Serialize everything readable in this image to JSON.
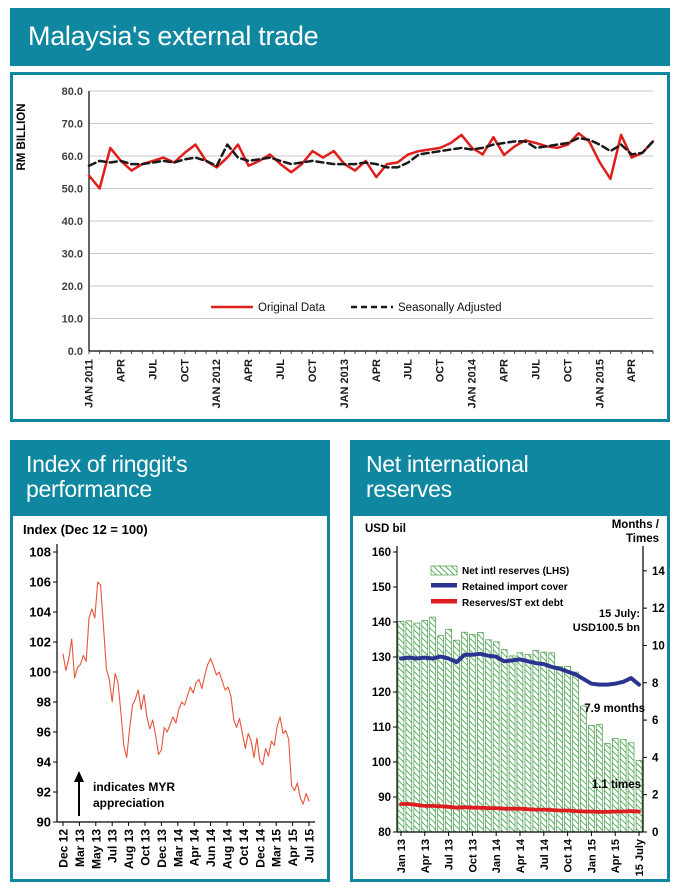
{
  "page": {
    "accent": "#0f87a1",
    "background": "#ffffff"
  },
  "cards": {
    "trade": {
      "title": "Malaysia's external trade"
    },
    "ringgit": {
      "title_line1": "Index of ringgit's",
      "title_line2": "performance"
    },
    "reserves": {
      "title_line1": "Net international",
      "title_line2": "reserves"
    }
  },
  "chart_data": [
    {
      "id": "trade",
      "type": "line",
      "title": "Malaysia's external trade",
      "ylabel": "RM BILLION",
      "ylim": [
        0,
        80
      ],
      "grid": true,
      "y_tick_labels": [
        "80.0",
        "70.0",
        "60.0",
        "50.0",
        "40.0",
        "30.0",
        "20.0",
        "10.0",
        "0.0"
      ],
      "x_tick_labels": [
        "JAN 2011",
        "APR",
        "JUL",
        "OCT",
        "JAN 2012",
        "APR",
        "JUL",
        "OCT",
        "JAN 2013",
        "APR",
        "JUL",
        "OCT",
        "JAN 2014",
        "APR",
        "JUL",
        "OCT",
        "JAN 2015",
        "APR"
      ],
      "x_label_every": 3,
      "legend_position": "bottom-inside",
      "series": [
        {
          "name": "Original Data",
          "color": "#e01e1c",
          "dash": null,
          "values": [
            54,
            50,
            62.5,
            58.5,
            55.5,
            57.5,
            58.5,
            59.5,
            58,
            61,
            63.5,
            58.5,
            56.5,
            59.5,
            63.5,
            57,
            58.5,
            60.5,
            57.5,
            55,
            57.5,
            61.5,
            59.5,
            61.5,
            57.5,
            55.5,
            58.5,
            53.5,
            57.5,
            58,
            60.5,
            61.5,
            62,
            62.5,
            64,
            66.5,
            62.5,
            60.5,
            65.8,
            60.3,
            63,
            64.8,
            64,
            63,
            62.5,
            63.5,
            67,
            64.5,
            58,
            53,
            66.5,
            59.5,
            61,
            64.5
          ]
        },
        {
          "name": "Seasonally Adjusted",
          "color": "#1a1a1a",
          "dash": "7,4",
          "values": [
            57,
            58.5,
            58,
            58.5,
            57.5,
            57.5,
            58,
            58.5,
            58,
            59,
            59.5,
            58.5,
            57,
            63.5,
            59.5,
            58.5,
            59,
            59.5,
            58.5,
            57.5,
            58,
            58.5,
            58,
            57.5,
            57.5,
            57.5,
            58,
            57.5,
            56.5,
            56.5,
            58,
            60.5,
            61,
            61.5,
            62,
            62.5,
            62,
            62.5,
            63.5,
            64,
            64.5,
            64.5,
            62.5,
            63,
            63.5,
            64,
            65.5,
            65,
            63.5,
            61.5,
            63.5,
            60.5,
            61,
            64.5
          ]
        }
      ]
    },
    {
      "id": "ringgit",
      "type": "line",
      "subtitle": "Index (Dec 12 = 100)",
      "ylim": [
        90,
        108
      ],
      "grid": false,
      "y_ticks": [
        108,
        106,
        104,
        102,
        100,
        98,
        96,
        94,
        92,
        90
      ],
      "x_tick_labels": [
        "Dec 12",
        "Mar 13",
        "May 13",
        "Jul 13",
        "Aug 13",
        "Oct 13",
        "Dec 13",
        "Mar 14",
        "Apr 14",
        "Jun 14",
        "Aug 14",
        "Oct 14",
        "Dec 14",
        "Mar 15",
        "Apr 15",
        "Jul 15"
      ],
      "annotation": {
        "symbol": "up-arrow",
        "line1": "indicates MYR",
        "line2": "appreciation"
      },
      "series": [
        {
          "name": "Ringgit performance index",
          "color": "#e8543b",
          "values": [
            101.2,
            100.1,
            100.9,
            102.2,
            99.6,
            100.3,
            100.5,
            101.1,
            100.7,
            103.6,
            104.2,
            103.6,
            106,
            105.8,
            103,
            100.2,
            99.5,
            98,
            99.9,
            99.3,
            97.3,
            95.1,
            94.3,
            96.2,
            97.8,
            98.2,
            98.8,
            97.5,
            98.5,
            97,
            96.2,
            96.8,
            95.8,
            94.5,
            94.8,
            96.3,
            96,
            96.5,
            97,
            96.6,
            97.5,
            98,
            97.8,
            98.4,
            99,
            98.6,
            99.3,
            99.5,
            98.9,
            99.8,
            100.5,
            100.9,
            100.4,
            99.8,
            100,
            99.4,
            98.8,
            99,
            98.4,
            96.8,
            96.3,
            96.9,
            95.9,
            94.9,
            95.9,
            95.4,
            94.3,
            95.6,
            94.1,
            93.8,
            94.9,
            94.4,
            95.4,
            95.1,
            96.4,
            97,
            95.9,
            96.1,
            95.5,
            92.4,
            92.1,
            92.6,
            91.6,
            91.2,
            91.9,
            91.4
          ]
        }
      ]
    },
    {
      "id": "reserves",
      "type": "combo",
      "axis_left_label": "USD bil",
      "axis_right_label_line1": "Months /",
      "axis_right_label_line2": "Times",
      "ylim_left": [
        80,
        160
      ],
      "ylim_right": [
        0,
        14
      ],
      "left_ticks": [
        160,
        150,
        140,
        130,
        120,
        110,
        100,
        90,
        80
      ],
      "right_ticks": [
        14,
        12,
        10,
        8,
        6,
        4,
        2,
        0
      ],
      "x_tick_labels": [
        "Jan 13",
        "Apr 13",
        "Jul 13",
        "Oct 13",
        "Jan 14",
        "Apr 14",
        "Jul 14",
        "Oct 14",
        "Jan 15",
        "Apr 15",
        "15 July"
      ],
      "x_label_every": 3,
      "bars": {
        "name": "Net intl reserves (LHS)",
        "color": "#3f9a43",
        "values": [
          140.2,
          140.3,
          139.7,
          140.4,
          141.4,
          136.1,
          137.9,
          134.8,
          137.1,
          136.4,
          137,
          134.9,
          134.3,
          132.1,
          130.3,
          131.2,
          130.7,
          131.9,
          131.4,
          131.2,
          127.3,
          127.3,
          125.7,
          116,
          110.5,
          110.7,
          105.3,
          106.7,
          106.4,
          105.5,
          100.5
        ]
      },
      "lines": [
        {
          "name": "Retained import cover",
          "color": "#2b3491",
          "axis": "right",
          "values": [
            9.3,
            9.35,
            9.3,
            9.35,
            9.3,
            9.4,
            9.3,
            9.1,
            9.5,
            9.5,
            9.55,
            9.45,
            9.4,
            9.15,
            9.2,
            9.25,
            9.15,
            9.05,
            9,
            8.85,
            8.75,
            8.6,
            8.45,
            8.2,
            7.95,
            7.9,
            7.9,
            7.95,
            8.05,
            8.25,
            7.9
          ]
        },
        {
          "name": "Reserves/ST ext debt",
          "color": "#dd1d20",
          "axis": "right",
          "values": [
            1.5,
            1.5,
            1.45,
            1.4,
            1.4,
            1.38,
            1.35,
            1.3,
            1.33,
            1.3,
            1.3,
            1.28,
            1.28,
            1.25,
            1.25,
            1.25,
            1.22,
            1.2,
            1.2,
            1.18,
            1.15,
            1.15,
            1.12,
            1.1,
            1.1,
            1.08,
            1.08,
            1.1,
            1.1,
            1.12,
            1.1
          ]
        }
      ],
      "annotations": [
        {
          "id": "reserves-callout",
          "line1": "15 July:",
          "line2": "USD100.5 bn"
        },
        {
          "id": "import-cover-label",
          "text": "7.9 months"
        },
        {
          "id": "st-debt-label",
          "text": "1.1 times"
        }
      ]
    }
  ]
}
